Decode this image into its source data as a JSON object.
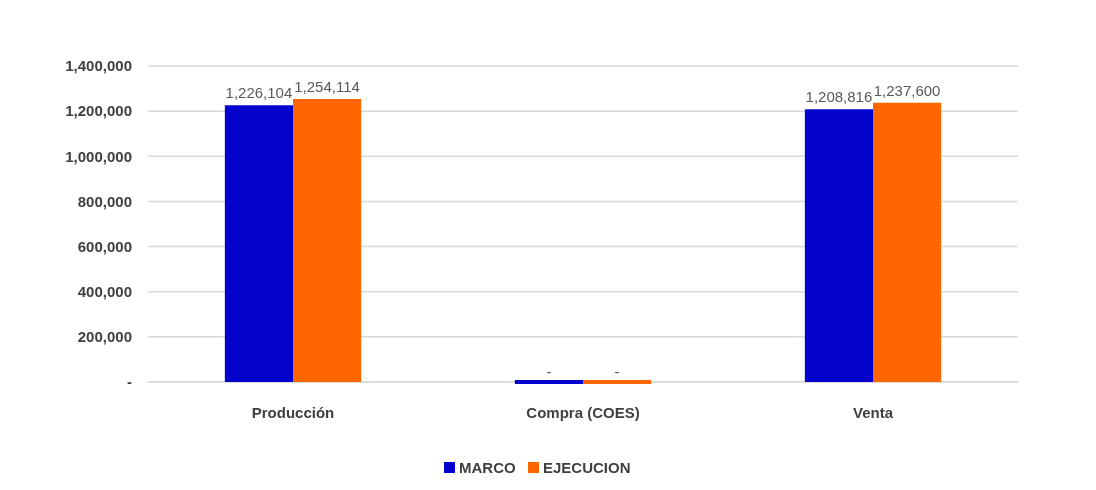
{
  "chart_data": {
    "type": "bar",
    "categories": [
      "Producción",
      "Compra (COES)",
      "Venta"
    ],
    "series": [
      {
        "name": "MARCO",
        "color": "#0303cd",
        "values": [
          1226104,
          0,
          1208816
        ],
        "value_labels": [
          "1,226,104",
          "-",
          "1,208,816"
        ]
      },
      {
        "name": "EJECUCION",
        "color": "#ff6600",
        "values": [
          1254114,
          0,
          1237600
        ],
        "value_labels": [
          "1,254,114",
          "-",
          "1,237,600"
        ]
      }
    ],
    "ylim": [
      0,
      1400000
    ],
    "yticks": [
      {
        "value": 0,
        "label": "-"
      },
      {
        "value": 200000,
        "label": "200,000"
      },
      {
        "value": 400000,
        "label": "400,000"
      },
      {
        "value": 600000,
        "label": "600,000"
      },
      {
        "value": 800000,
        "label": "800,000"
      },
      {
        "value": 1000000,
        "label": "1,000,000"
      },
      {
        "value": 1200000,
        "label": "1,200,000"
      },
      {
        "value": 1400000,
        "label": "1,400,000"
      }
    ],
    "grid": "y",
    "legend": "bottom"
  }
}
